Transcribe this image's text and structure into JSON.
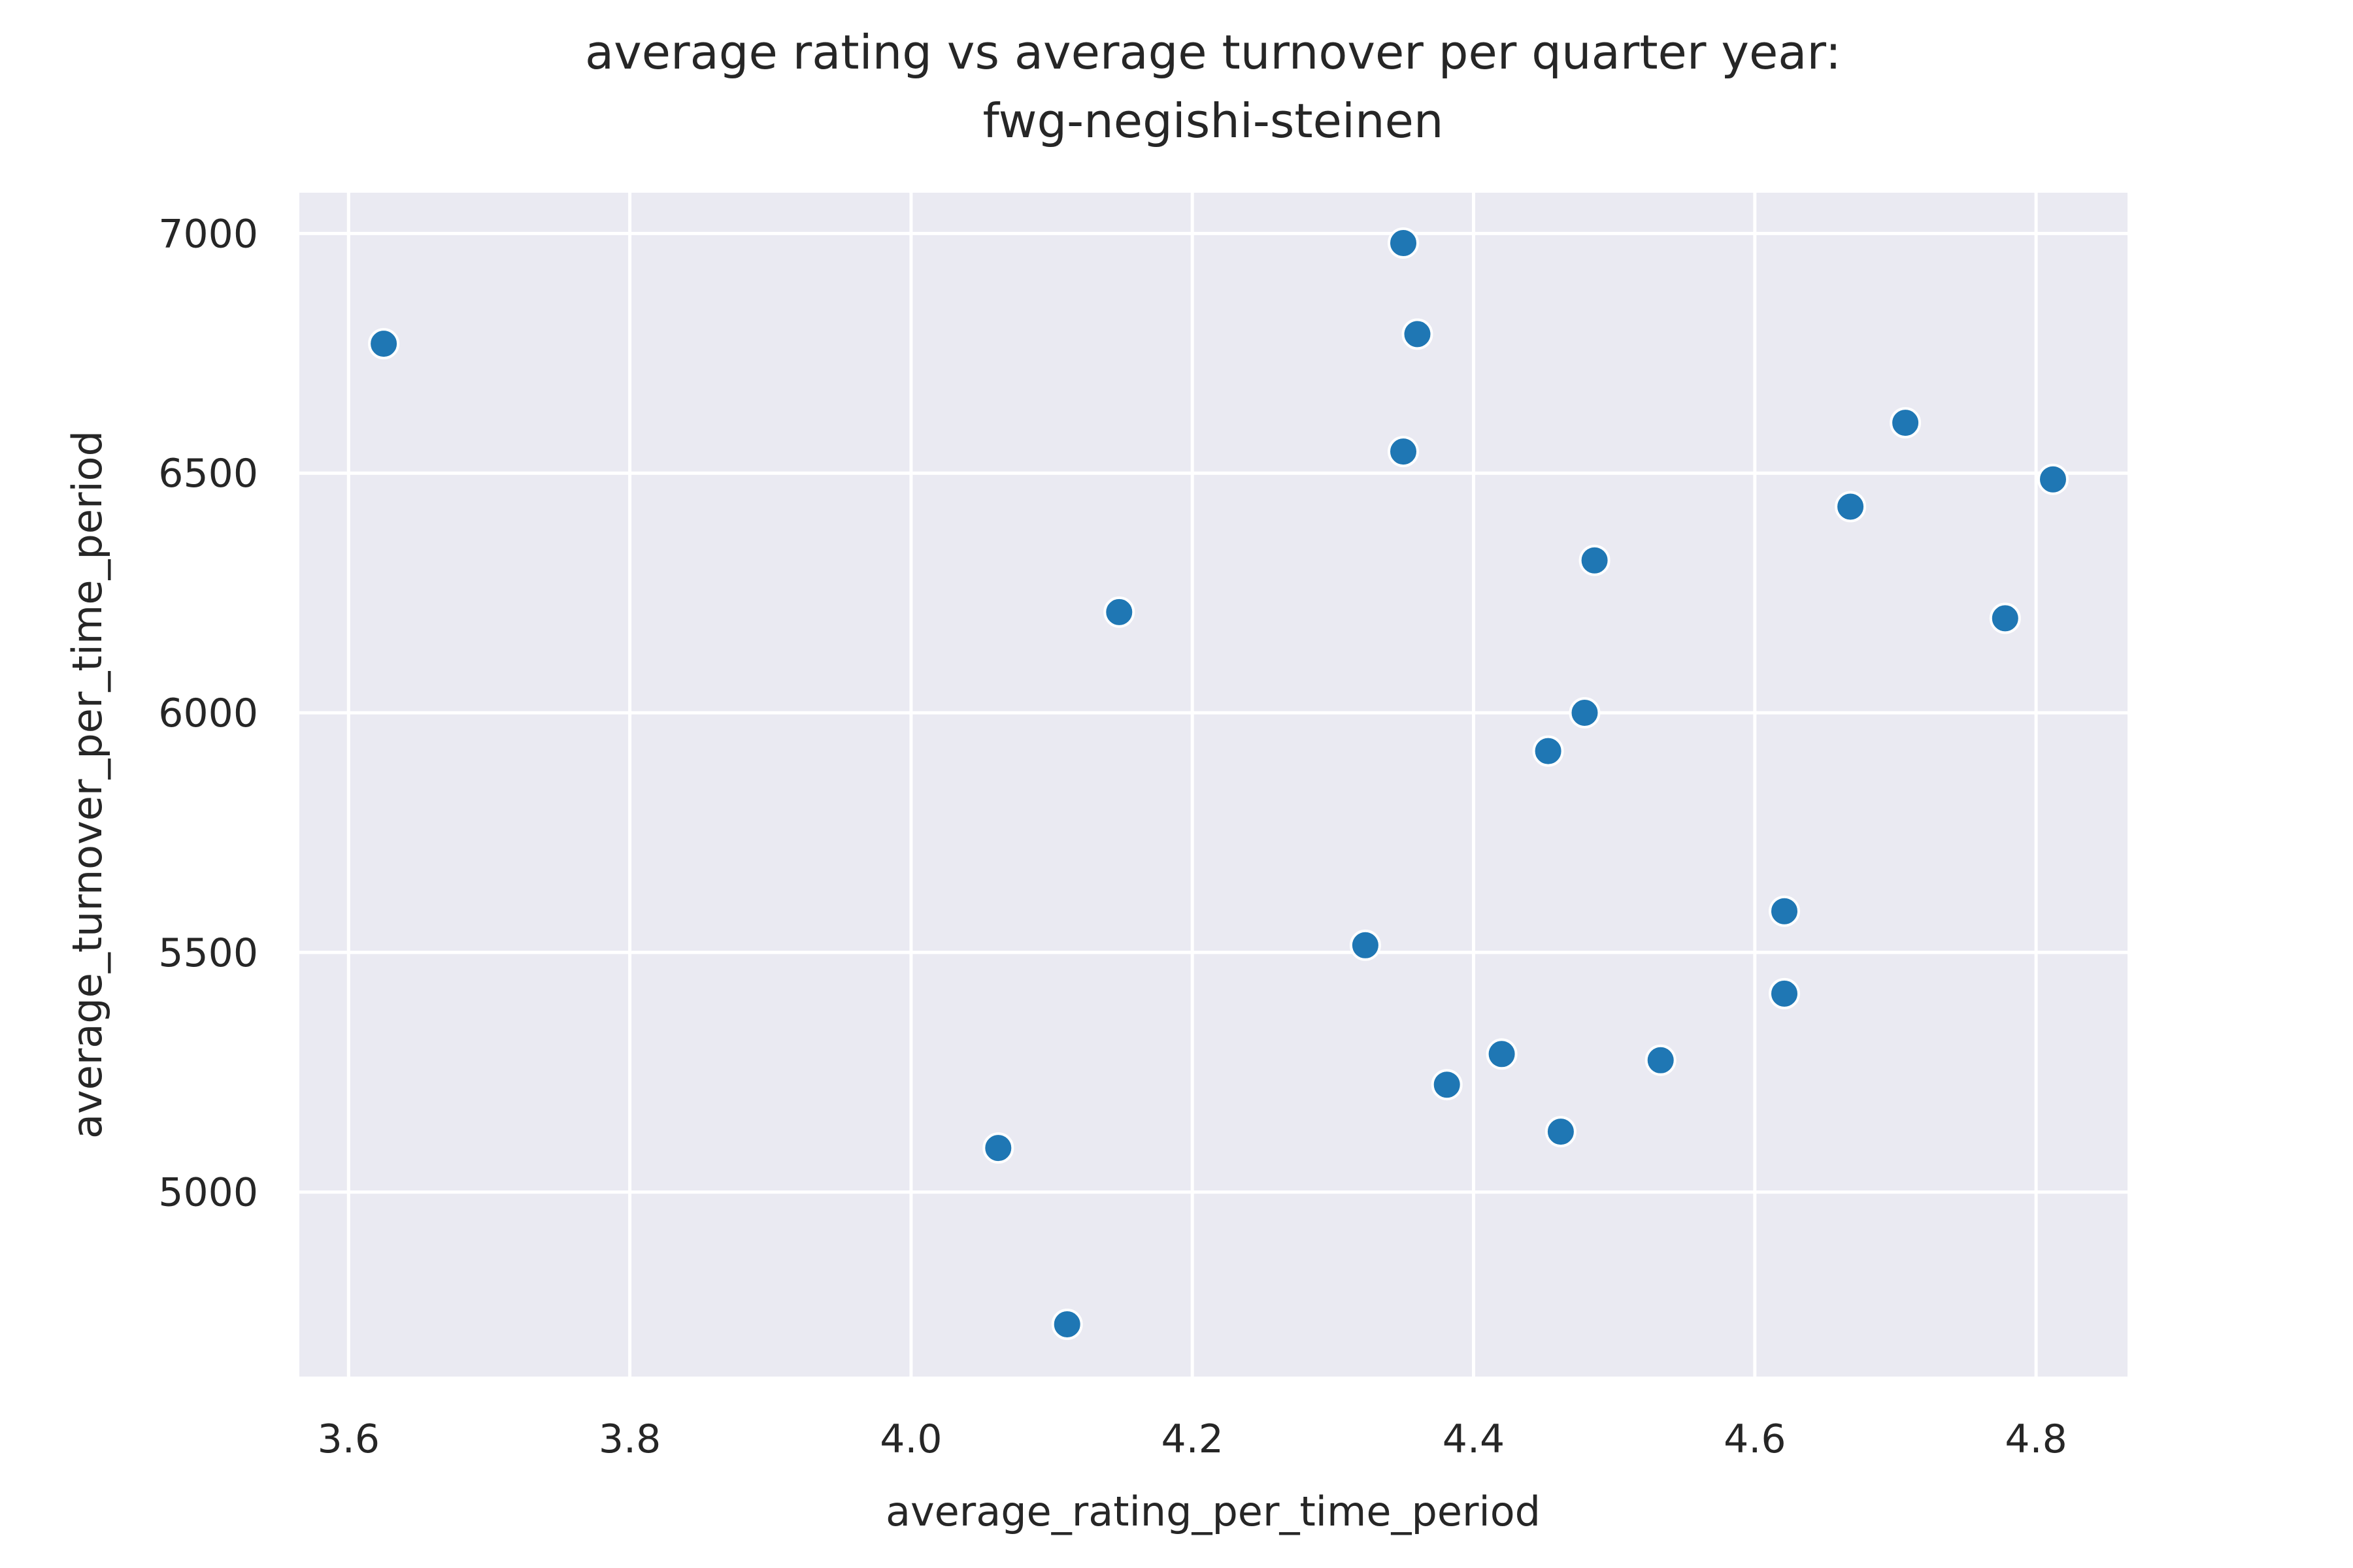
{
  "chart_data": {
    "type": "scatter",
    "title": "average rating vs average turnover per quarter year:",
    "subtitle": "fwg-negishi-steinen",
    "xlabel": "average_rating_per_time_period",
    "ylabel": "average_turnover_per_time_period",
    "xlim": [
      3.565,
      4.865
    ],
    "ylim": [
      4615,
      7085
    ],
    "xticks": [
      3.6,
      3.8,
      4.0,
      4.2,
      4.4,
      4.6,
      4.8
    ],
    "xtick_labels": [
      "3.6",
      "3.8",
      "4.0",
      "4.2",
      "4.4",
      "4.6",
      "4.8"
    ],
    "yticks": [
      5000,
      5500,
      6000,
      6500,
      7000
    ],
    "ytick_labels": [
      "5000",
      "5500",
      "6000",
      "6500",
      "7000"
    ],
    "grid": true,
    "background_color": "#eaeaf2",
    "grid_color": "#ffffff",
    "point_color": "#1f77b4",
    "points": [
      {
        "x": 3.625,
        "y": 6770
      },
      {
        "x": 4.35,
        "y": 6980
      },
      {
        "x": 4.36,
        "y": 6790
      },
      {
        "x": 4.35,
        "y": 6545
      },
      {
        "x": 4.707,
        "y": 6605
      },
      {
        "x": 4.812,
        "y": 6487
      },
      {
        "x": 4.668,
        "y": 6430
      },
      {
        "x": 4.486,
        "y": 6318
      },
      {
        "x": 4.148,
        "y": 6210
      },
      {
        "x": 4.778,
        "y": 6197
      },
      {
        "x": 4.479,
        "y": 6000
      },
      {
        "x": 4.453,
        "y": 5920
      },
      {
        "x": 4.621,
        "y": 5586
      },
      {
        "x": 4.323,
        "y": 5515
      },
      {
        "x": 4.621,
        "y": 5414
      },
      {
        "x": 4.42,
        "y": 5288
      },
      {
        "x": 4.533,
        "y": 5275
      },
      {
        "x": 4.381,
        "y": 5224
      },
      {
        "x": 4.462,
        "y": 5126
      },
      {
        "x": 4.062,
        "y": 5092
      },
      {
        "x": 4.111,
        "y": 4724
      }
    ]
  }
}
